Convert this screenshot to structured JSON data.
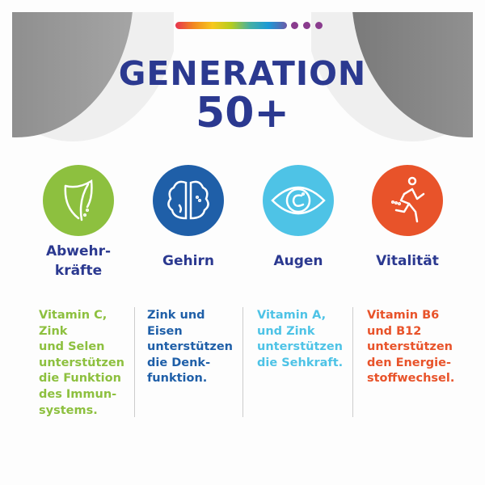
{
  "header": {
    "title": "GENERATION",
    "subtitle": "50+"
  },
  "colors": {
    "navy": "#2b3990",
    "green": "#8dc03f",
    "blue": "#1f5fa8",
    "lightblue": "#4ec3e6",
    "orange": "#e8532a"
  },
  "benefits": [
    {
      "label": "Abwehr-\nkräfte",
      "icon": "shield-icon",
      "description": "Vitamin C,\nZink\nund Selen\nunterstützen\ndie Funktion\ndes Immun-\nsystems."
    },
    {
      "label": "Gehirn",
      "icon": "brain-icon",
      "description": "Zink und\nEisen\nunterstützen\ndie Denk-\nfunktion."
    },
    {
      "label": "Augen",
      "icon": "eye-icon",
      "description": "Vitamin A,\nund Zink\nunterstützen\ndie Sehkraft."
    },
    {
      "label": "Vitalität",
      "icon": "running-person-icon",
      "description": "Vitamin B6\nund B12\nunterstützen\nden Energie-\nstoffwechsel."
    }
  ]
}
